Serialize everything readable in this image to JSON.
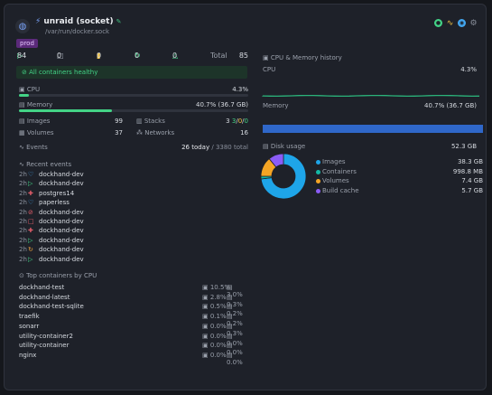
{
  "header": {
    "title": "unraid (socket)",
    "path": "/var/run/docker.sock",
    "tag": "prod"
  },
  "stats": {
    "running": "84",
    "stopped": "0",
    "paused": "0",
    "restarting": "0",
    "unhealthy": "0",
    "total_label": "Total",
    "total": "85"
  },
  "health": "All containers healthy",
  "resources": {
    "cpu_label": "CPU",
    "cpu_value": "4.3%",
    "cpu_fraction": 0.043,
    "mem_label": "Memory",
    "mem_value": "40.7% (36.7 GB)",
    "mem_fraction": 0.407
  },
  "counts": {
    "images_label": "Images",
    "images": "99",
    "volumes_label": "Volumes",
    "volumes": "37",
    "stacks_label": "Stacks",
    "stacks_a": "3",
    "stacks_b": "3",
    "stacks_c": "0",
    "stacks_d": "0",
    "networks_label": "Networks",
    "networks": "16"
  },
  "events": {
    "label": "Events",
    "today": "26 today",
    "total": "/ 3380 total"
  },
  "recent": {
    "title": "Recent events",
    "items": [
      {
        "time": "2h",
        "name": "dockhand-dev",
        "color": "#43a7f0",
        "glyph": "♡"
      },
      {
        "time": "2h",
        "name": "dockhand-dev",
        "color": "#43d386",
        "glyph": "▷"
      },
      {
        "time": "2h",
        "name": "postgres14",
        "color": "#e35d6a",
        "glyph": "✚"
      },
      {
        "time": "2h",
        "name": "paperless",
        "color": "#43a7f0",
        "glyph": "♡"
      },
      {
        "time": "2h",
        "name": "dockhand-dev",
        "color": "#e35d6a",
        "glyph": "⊘"
      },
      {
        "time": "2h",
        "name": "dockhand-dev",
        "color": "#e35d6a",
        "glyph": "□"
      },
      {
        "time": "2h",
        "name": "dockhand-dev",
        "color": "#e35d6a",
        "glyph": "✚"
      },
      {
        "time": "2h",
        "name": "dockhand-dev",
        "color": "#43d386",
        "glyph": "▷"
      },
      {
        "time": "2h",
        "name": "dockhand-dev",
        "color": "#f0a33a",
        "glyph": "↻"
      },
      {
        "time": "2h",
        "name": "dockhand-dev",
        "color": "#43d386",
        "glyph": "▷"
      }
    ]
  },
  "top": {
    "title": "Top containers by CPU",
    "items": [
      {
        "name": "dockhand-test",
        "cpu": "10.5%",
        "mem": "3.0%"
      },
      {
        "name": "dockhand-latest",
        "cpu": "2.8%",
        "mem": "0.3%"
      },
      {
        "name": "dockhand-test-sqlite",
        "cpu": "0.5%",
        "mem": "0.2%"
      },
      {
        "name": "traefik",
        "cpu": "0.1%",
        "mem": "0.2%"
      },
      {
        "name": "sonarr",
        "cpu": "0.0%",
        "mem": "0.3%"
      },
      {
        "name": "utility-container2",
        "cpu": "0.0%",
        "mem": "0.0%"
      },
      {
        "name": "utility-container",
        "cpu": "0.0%",
        "mem": "0.0%"
      },
      {
        "name": "nginx",
        "cpu": "0.0%",
        "mem": "0.0%"
      }
    ]
  },
  "history": {
    "title": "CPU & Memory history",
    "cpu_label": "CPU",
    "cpu_value": "4.3%",
    "mem_label": "Memory",
    "mem_value": "40.7% (36.7 GB)",
    "cpu_level": 0.043,
    "mem_level": 0.407
  },
  "disk": {
    "title": "Disk usage",
    "total": "52.3 GB",
    "items": [
      {
        "name": "Images",
        "value": "38.3 GB",
        "gb": 38.3,
        "color": "#1ea5e9"
      },
      {
        "name": "Containers",
        "value": "998.8 MB",
        "gb": 0.9988,
        "color": "#14b8a6"
      },
      {
        "name": "Volumes",
        "value": "7.4 GB",
        "gb": 7.4,
        "color": "#f5a524"
      },
      {
        "name": "Build cache",
        "value": "5.7 GB",
        "gb": 5.7,
        "color": "#8b5cf6"
      }
    ]
  },
  "colors": {
    "cpu": "#43d386",
    "mem": "#43d386",
    "history_cpu": "#2bb37a",
    "history_mem": "#2f67c9"
  }
}
